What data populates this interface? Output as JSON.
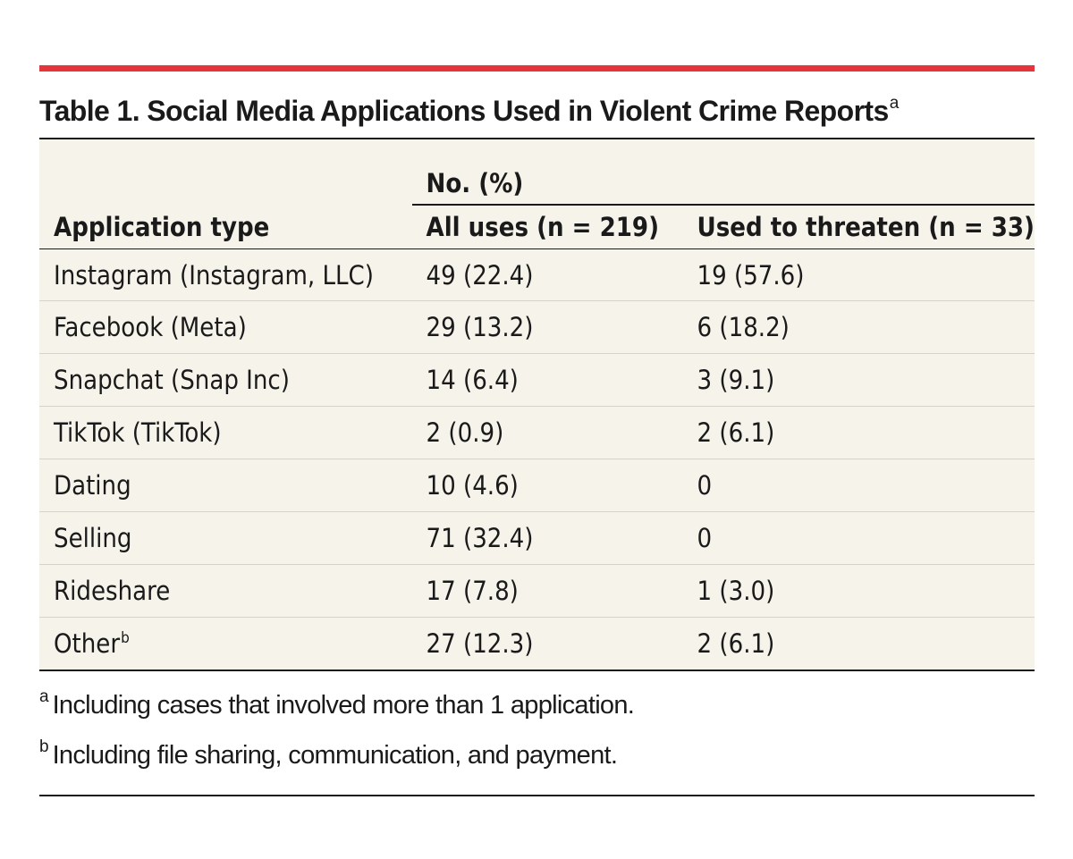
{
  "document": {
    "title": "Table 1. Social Media Applications Used in Violent Crime Reports",
    "title_marker": "a",
    "colors": {
      "top_rule": "#e5343a",
      "table_background": "#f5f3ea",
      "text": "#1a1a1a"
    }
  },
  "table": {
    "group_header": "No. (%)",
    "columns": [
      "Application type",
      "All uses (n = 219)",
      "Used to threaten (n = 33)"
    ],
    "rows": [
      {
        "application": "Instagram (Instagram, LLC)",
        "marker": "",
        "all_uses": "49 (22.4)",
        "threaten": "19 (57.6)"
      },
      {
        "application": "Facebook (Meta)",
        "marker": "",
        "all_uses": "29 (13.2)",
        "threaten": "6 (18.2)"
      },
      {
        "application": "Snapchat (Snap Inc)",
        "marker": "",
        "all_uses": "14 (6.4)",
        "threaten": "3 (9.1)"
      },
      {
        "application": "TikTok (TikTok)",
        "marker": "",
        "all_uses": "2 (0.9)",
        "threaten": "2 (6.1)"
      },
      {
        "application": "Dating",
        "marker": "",
        "all_uses": "10 (4.6)",
        "threaten": "0"
      },
      {
        "application": "Selling",
        "marker": "",
        "all_uses": "71 (32.4)",
        "threaten": "0"
      },
      {
        "application": "Rideshare",
        "marker": "",
        "all_uses": "17 (7.8)",
        "threaten": "1 (3.0)"
      },
      {
        "application": "Other",
        "marker": "b",
        "all_uses": "27 (12.3)",
        "threaten": "2 (6.1)"
      }
    ]
  },
  "footnotes": [
    {
      "marker": "a",
      "text": "Including cases that involved more than 1 application."
    },
    {
      "marker": "b",
      "text": "Including file sharing, communication, and payment."
    }
  ]
}
